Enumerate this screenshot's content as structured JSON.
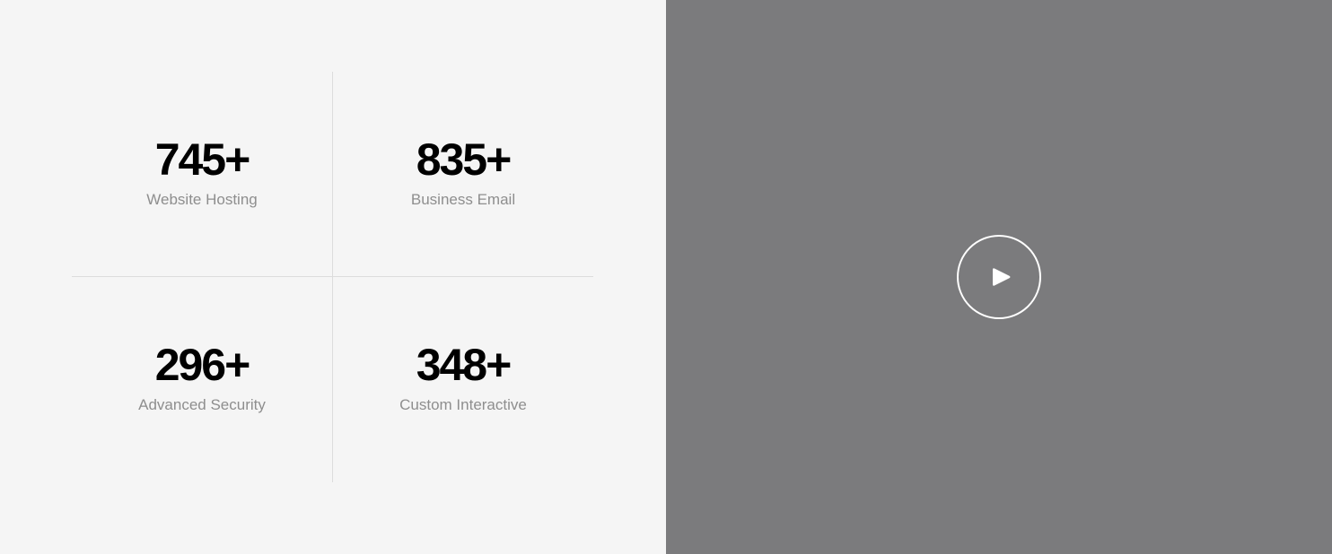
{
  "stats": [
    {
      "value": "745+",
      "label": "Website Hosting"
    },
    {
      "value": "835+",
      "label": "Business Email"
    },
    {
      "value": "296+",
      "label": "Advanced Security"
    },
    {
      "value": "348+",
      "label": "Custom Interactive"
    }
  ],
  "video": {
    "play_icon": "play-icon"
  },
  "colors": {
    "stats_background": "#f5f5f5",
    "video_background": "#7b7b7d",
    "value_text": "#000000",
    "label_text": "#8e8e8e",
    "divider": "#dcdcdc"
  }
}
